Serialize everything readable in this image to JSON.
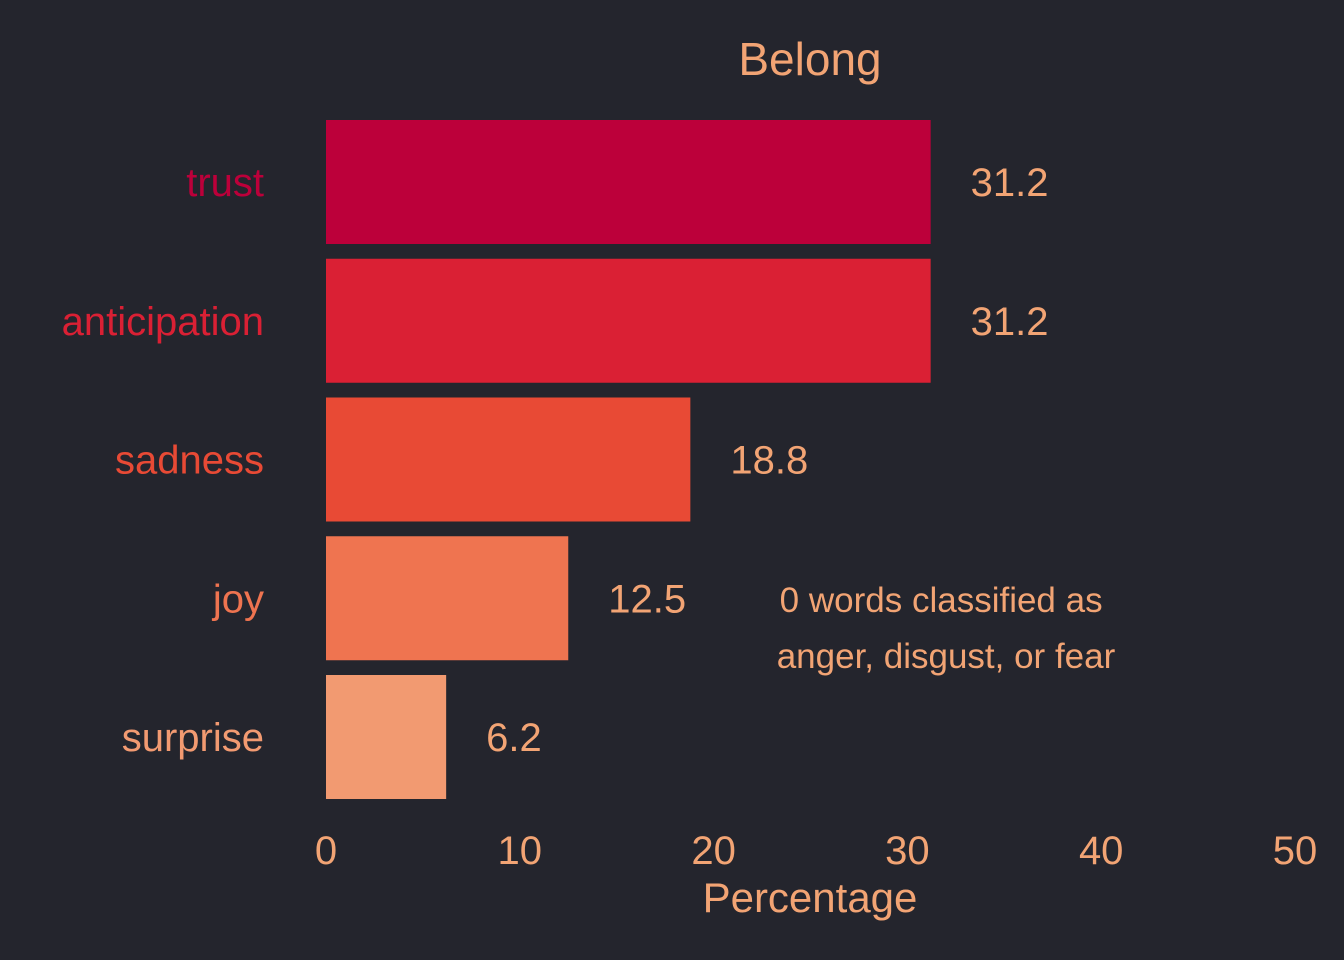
{
  "chart_data": {
    "type": "bar",
    "orientation": "horizontal",
    "title": "Belong",
    "xlabel": "Percentage",
    "ylabel": "",
    "categories": [
      "trust",
      "anticipation",
      "sadness",
      "joy",
      "surprise"
    ],
    "values": [
      31.2,
      31.2,
      18.8,
      12.5,
      6.2
    ],
    "value_labels": [
      "31.2",
      "31.2",
      "18.8",
      "12.5",
      "6.2"
    ],
    "xlim": [
      0,
      50
    ],
    "x_ticks": [
      0,
      10,
      20,
      30,
      40,
      50
    ],
    "x_tick_labels": [
      "0",
      "10",
      "20",
      "30",
      "40",
      "50"
    ],
    "grid": false,
    "legend": "none",
    "colors": [
      "#bc003a",
      "#da2034",
      "#e84a35",
      "#ef7450",
      "#f29a71"
    ],
    "annotation": {
      "lines": [
        "0 words classified as",
        "anger, disgust, or fear"
      ]
    }
  },
  "style": {
    "background": "#24252d",
    "text_color": "#f2a474"
  }
}
